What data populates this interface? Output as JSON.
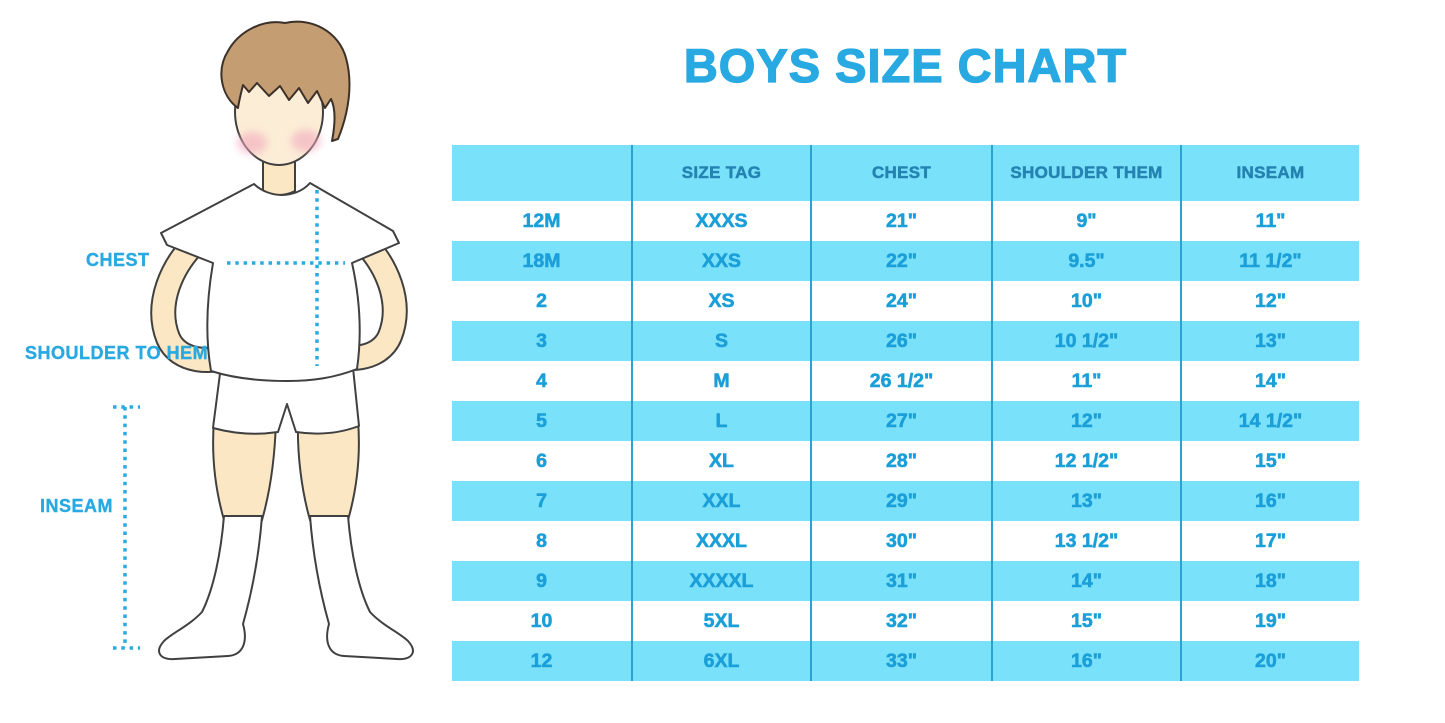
{
  "title": "BOYS SIZE CHART",
  "figure_labels": {
    "chest": "CHEST",
    "shoulder_to_hem": "SHOULDER TO HEM",
    "inseam": "INSEAM"
  },
  "colors": {
    "accent_blue": "#29A9E1",
    "band_blue": "#7AE1FB",
    "divider_blue": "#2AA2D2",
    "header_text_blue": "#2383B1",
    "cell_text_blue": "#1B9FD8",
    "skin": "#FBE7C3",
    "face_skin": "#FCEDD6",
    "hair_brown": "#C49D72",
    "cheek_pink": "#F2A9BE"
  },
  "chart_data": {
    "type": "table",
    "title": "BOYS SIZE CHART",
    "columns": [
      "",
      "SIZE TAG",
      "CHEST",
      "SHOULDER THEM",
      "INSEAM"
    ],
    "rows": [
      [
        "12M",
        "XXXS",
        "21\"",
        "9\"",
        "11\""
      ],
      [
        "18M",
        "XXS",
        "22\"",
        "9.5\"",
        "11 1/2\""
      ],
      [
        "2",
        "XS",
        "24\"",
        "10\"",
        "12\""
      ],
      [
        "3",
        "S",
        "26\"",
        "10 1/2\"",
        "13\""
      ],
      [
        "4",
        "M",
        "26 1/2\"",
        "11\"",
        "14\""
      ],
      [
        "5",
        "L",
        "27\"",
        "12\"",
        "14 1/2\""
      ],
      [
        "6",
        "XL",
        "28\"",
        "12 1/2\"",
        "15\""
      ],
      [
        "7",
        "XXL",
        "29\"",
        "13\"",
        "16\""
      ],
      [
        "8",
        "XXXL",
        "30\"",
        "13 1/2\"",
        "17\""
      ],
      [
        "9",
        "XXXXL",
        "31\"",
        "14\"",
        "18\""
      ],
      [
        "10",
        "5XL",
        "32\"",
        "15\"",
        "19\""
      ],
      [
        "12",
        "6XL",
        "33\"",
        "16\"",
        "20\""
      ]
    ]
  }
}
